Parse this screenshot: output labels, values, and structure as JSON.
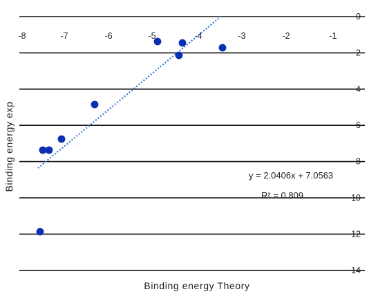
{
  "chart_data": {
    "type": "scatter",
    "xlabel": "Binding energy Theory",
    "ylabel": "Binding energy exp",
    "xlim": [
      -8,
      0
    ],
    "ylim": [
      -14,
      0
    ],
    "x_ticks": [
      -8,
      -7,
      -6,
      -5,
      -4,
      -3,
      -2,
      -1
    ],
    "y_ticks": [
      0,
      -2,
      -4,
      -6,
      -8,
      -10,
      -12,
      -14
    ],
    "x_tick_labels": [
      "-8",
      "-7",
      "-6",
      "-5",
      "-4",
      "-3",
      "-2",
      "-1"
    ],
    "y_tick_labels": [
      "0",
      "2",
      "4",
      "6",
      "8",
      "10",
      "12",
      "14"
    ],
    "grid": true,
    "series": [
      {
        "color": "#0a2fb0",
        "points": [
          {
            "x": -7.55,
            "y": -11.85
          },
          {
            "x": -7.5,
            "y": -7.4
          },
          {
            "x": -7.4,
            "y": -7.4
          },
          {
            "x": -7.1,
            "y": -6.8
          },
          {
            "x": -6.3,
            "y": -4.85
          },
          {
            "x": -4.9,
            "y": -1.45
          },
          {
            "x": -4.45,
            "y": -2.2
          },
          {
            "x": -4.38,
            "y": -1.5
          },
          {
            "x": -3.45,
            "y": -1.85
          }
        ]
      }
    ],
    "trendline": {
      "slope": 2.0406,
      "intercept": 7.0563,
      "x_range": [
        -7.55,
        -3.45
      ],
      "style": "dotted",
      "color": "#3a78d0"
    },
    "annotations": {
      "equation": "y = 2.0406x + 7.0563",
      "r_squared": "R² = 0.809"
    }
  }
}
